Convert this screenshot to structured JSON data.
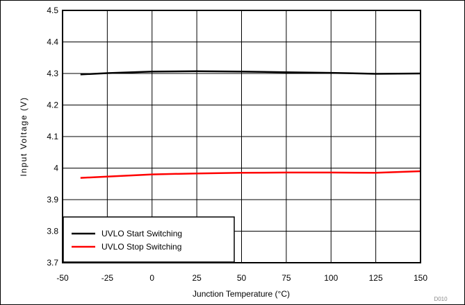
{
  "chart_data": {
    "type": "line",
    "xlabel": "Junction Temperature (°C)",
    "ylabel": "Input Voltage (V)",
    "xlim": [
      -50,
      150
    ],
    "ylim": [
      3.7,
      4.5
    ],
    "x_ticks": [
      "-50",
      "-25",
      "0",
      "25",
      "50",
      "75",
      "100",
      "125",
      "150"
    ],
    "y_ticks": [
      "3.7",
      "3.8",
      "3.9",
      "4",
      "4.1",
      "4.2",
      "4.3",
      "4.4",
      "4.5"
    ],
    "grid": true,
    "legend_position": "bottom-left",
    "series": [
      {
        "name": "UVLO Start Switching",
        "color": "#000000",
        "x": [
          -40,
          -25,
          0,
          25,
          50,
          75,
          100,
          125,
          150
        ],
        "y": [
          4.297,
          4.301,
          4.306,
          4.307,
          4.306,
          4.304,
          4.302,
          4.299,
          4.3
        ]
      },
      {
        "name": "UVLO Stop Switching",
        "color": "#ff0000",
        "x": [
          -40,
          -25,
          0,
          25,
          50,
          75,
          100,
          125,
          150
        ],
        "y": [
          3.969,
          3.973,
          3.98,
          3.983,
          3.985,
          3.986,
          3.986,
          3.985,
          3.99
        ]
      }
    ],
    "figure_code": "D010"
  }
}
